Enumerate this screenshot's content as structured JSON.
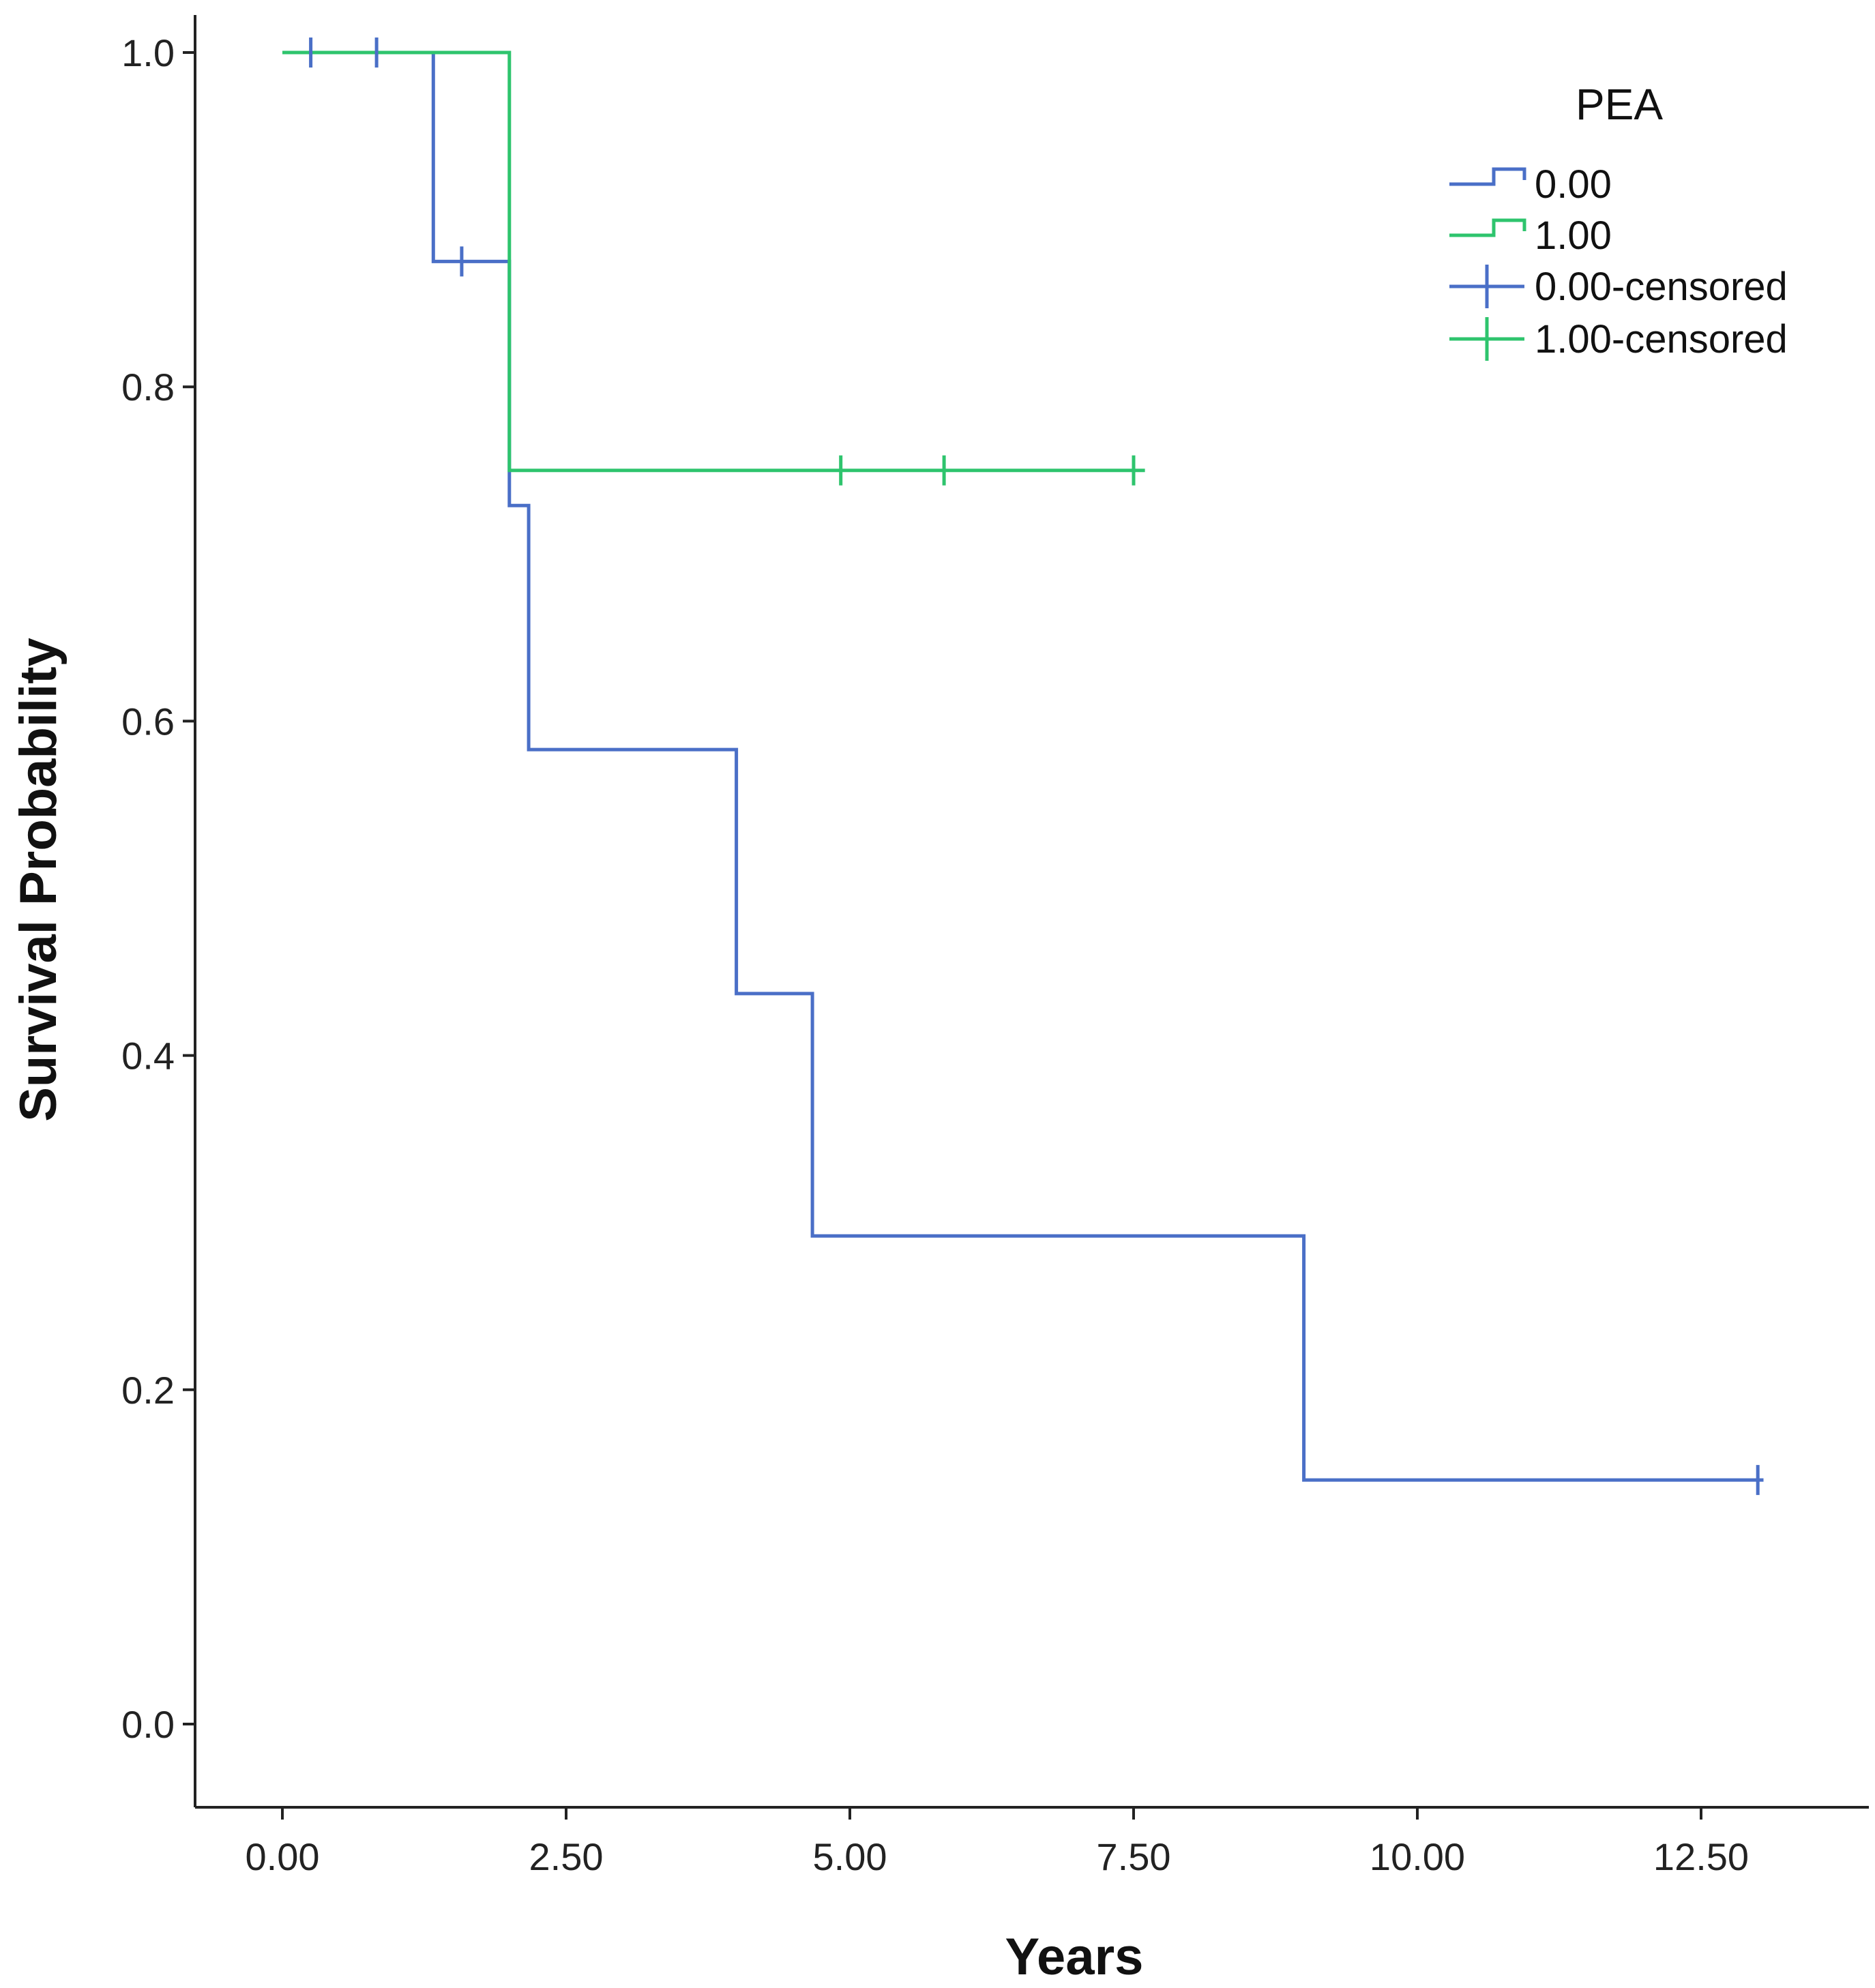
{
  "chart_data": {
    "type": "line",
    "subtype": "kaplan-meier-step",
    "xlabel": "Years",
    "ylabel": "Survival Probability",
    "xlim": [
      -0.8,
      13.9
    ],
    "ylim": [
      -0.055,
      1.025
    ],
    "x_ticks": [
      0,
      2.5,
      5,
      7.5,
      10,
      12.5
    ],
    "x_tick_labels": [
      "0.00",
      "2.50",
      "5.00",
      "7.50",
      "10.00",
      "12.50"
    ],
    "y_ticks": [
      0,
      0.2,
      0.4,
      0.6,
      0.8,
      1.0
    ],
    "y_tick_labels": [
      "0.0",
      "0.2",
      "0.4",
      "0.6",
      "0.8",
      "1.0"
    ],
    "grid": false,
    "legend": {
      "title": "PEA",
      "placement": "top-right",
      "entries": [
        {
          "label": "0.00",
          "kind": "step",
          "series": 0
        },
        {
          "label": "1.00",
          "kind": "step",
          "series": 1
        },
        {
          "label": "0.00-censored",
          "kind": "censor",
          "series": 0
        },
        {
          "label": "1.00-censored",
          "kind": "censor",
          "series": 1
        }
      ]
    },
    "series": [
      {
        "name": "0.00",
        "color": "#4a6fc7",
        "steps": [
          {
            "x": 0,
            "y": 1.0
          },
          {
            "x": 1.33,
            "y": 0.875
          },
          {
            "x": 2.0,
            "y": 0.729
          },
          {
            "x": 2.17,
            "y": 0.583
          },
          {
            "x": 4.0,
            "y": 0.437
          },
          {
            "x": 4.67,
            "y": 0.292
          },
          {
            "x": 9.0,
            "y": 0.146
          }
        ],
        "end_x": 13.05,
        "censored": [
          {
            "x": 0.25,
            "y": 1.0
          },
          {
            "x": 0.83,
            "y": 1.0
          },
          {
            "x": 1.58,
            "y": 0.875
          },
          {
            "x": 13.0,
            "y": 0.146
          }
        ]
      },
      {
        "name": "1.00",
        "color": "#2ec46d",
        "steps": [
          {
            "x": 0,
            "y": 1.0
          },
          {
            "x": 2.0,
            "y": 0.75
          }
        ],
        "end_x": 7.6,
        "censored": [
          {
            "x": 4.92,
            "y": 0.75
          },
          {
            "x": 5.83,
            "y": 0.75
          },
          {
            "x": 7.5,
            "y": 0.75
          }
        ]
      }
    ]
  }
}
